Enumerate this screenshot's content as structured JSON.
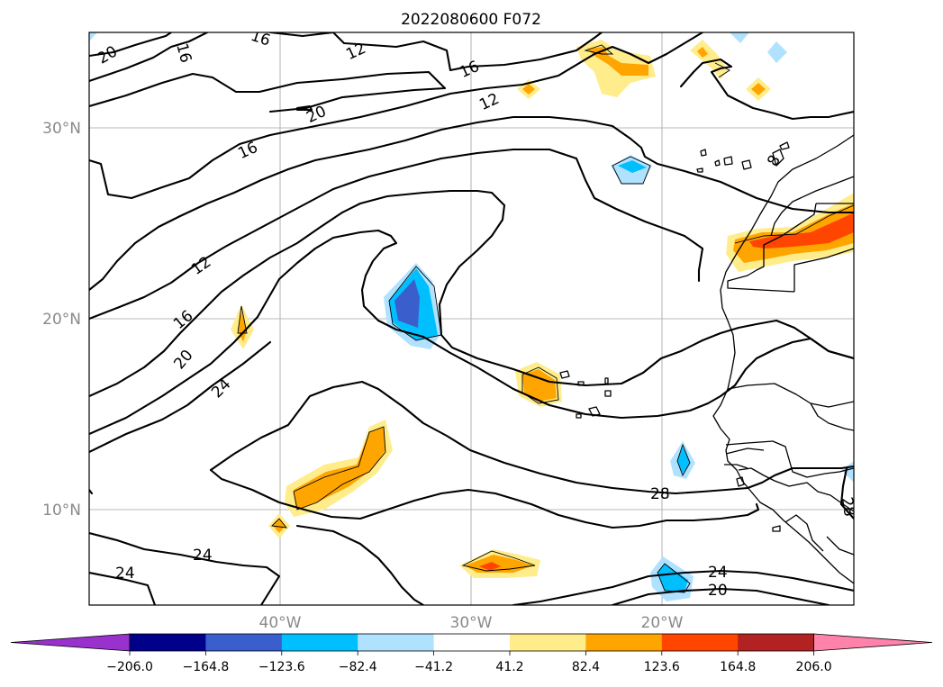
{
  "title": "2022080600 F072",
  "map": {
    "lat_labels": [
      "30°N",
      "20°N",
      "10°N"
    ],
    "lon_labels": [
      "40°W",
      "30°W",
      "20°W"
    ],
    "contour_labels": [
      "20",
      "16",
      "16",
      "12",
      "16",
      "12",
      "20",
      "16",
      "12",
      "16",
      "20",
      "24",
      "28",
      "24",
      "24",
      "24",
      "20",
      "28",
      "8"
    ]
  },
  "colorbar": {
    "ticks": [
      "−206.0",
      "−164.8",
      "−123.6",
      "−82.4",
      "−41.2",
      "41.2",
      "82.4",
      "123.6",
      "164.8",
      "206.0"
    ],
    "colors": [
      "#9932cc",
      "#00008b",
      "#3a5fcd",
      "#00bfff",
      "#b0e2ff",
      "#ffffff",
      "#ffec8b",
      "#ffa500",
      "#ff4500",
      "#b22222",
      "#ff82ab"
    ]
  }
}
